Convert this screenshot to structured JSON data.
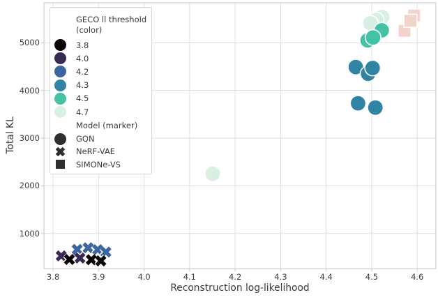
{
  "chart_data": {
    "type": "scatter",
    "title": "",
    "xlabel": "Reconstruction log-likelihood",
    "ylabel": "Total KL",
    "x_ticks": [
      3.8,
      3.9,
      4.0,
      4.1,
      4.2,
      4.3,
      4.4,
      4.5,
      4.6
    ],
    "y_ticks": [
      1000,
      2000,
      3000,
      4000,
      5000
    ],
    "x_range": [
      3.78,
      4.641
    ],
    "y_range": [
      265,
      5838
    ],
    "grid": true,
    "legend_position": "upper left",
    "threshold_colors": {
      "3.8": "#0b0405",
      "4.0": "#382a54",
      "4.2": "#3b64a1",
      "4.3": "#2f84a4",
      "4.5": "#43c3a5",
      "4.7": "#d7f0e2"
    },
    "simone_color": "#f2d4cb",
    "series": [
      {
        "name": "GQN",
        "marker": "circle",
        "points": [
          {
            "x": 4.523,
            "y": 5540,
            "threshold": "4.7"
          },
          {
            "x": 4.51,
            "y": 5480,
            "threshold": "4.7"
          },
          {
            "x": 4.497,
            "y": 5410,
            "threshold": "4.7"
          },
          {
            "x": 4.151,
            "y": 2250,
            "threshold": "4.7"
          },
          {
            "x": 4.522,
            "y": 5260,
            "threshold": "4.5"
          },
          {
            "x": 4.491,
            "y": 5050,
            "threshold": "4.5"
          },
          {
            "x": 4.503,
            "y": 5110,
            "threshold": "4.5"
          },
          {
            "x": 4.465,
            "y": 4490,
            "threshold": "4.3"
          },
          {
            "x": 4.492,
            "y": 4350,
            "threshold": "4.3"
          },
          {
            "x": 4.502,
            "y": 4470,
            "threshold": "4.3"
          },
          {
            "x": 4.47,
            "y": 3730,
            "threshold": "4.3"
          },
          {
            "x": 4.508,
            "y": 3640,
            "threshold": "4.3"
          }
        ]
      },
      {
        "name": "NeRF-VAE",
        "marker": "x",
        "points": [
          {
            "x": 3.853,
            "y": 665,
            "threshold": "4.2"
          },
          {
            "x": 3.877,
            "y": 700,
            "threshold": "4.2"
          },
          {
            "x": 3.898,
            "y": 660,
            "threshold": "4.2"
          },
          {
            "x": 3.916,
            "y": 610,
            "threshold": "4.2"
          },
          {
            "x": 3.818,
            "y": 530,
            "threshold": "4.0"
          },
          {
            "x": 3.859,
            "y": 485,
            "threshold": "4.0"
          },
          {
            "x": 3.836,
            "y": 455,
            "threshold": "3.8"
          },
          {
            "x": 3.884,
            "y": 450,
            "threshold": "3.8"
          },
          {
            "x": 3.905,
            "y": 425,
            "threshold": "3.8"
          }
        ]
      },
      {
        "name": "SIMONe-VS",
        "marker": "square",
        "points": [
          {
            "x": 4.593,
            "y": 5570,
            "color": "#f2d4cb"
          },
          {
            "x": 4.572,
            "y": 5250,
            "color": "#f2d4cb"
          },
          {
            "x": 4.585,
            "y": 5460,
            "color": "#f2d4cb"
          }
        ]
      }
    ],
    "legend": {
      "title_lines": [
        "GECO ll threshold",
        "(color)"
      ],
      "color_entries": [
        {
          "label": "3.8",
          "color": "#0b0405"
        },
        {
          "label": "4.0",
          "color": "#382a54"
        },
        {
          "label": "4.2",
          "color": "#3b64a1"
        },
        {
          "label": "4.3",
          "color": "#2f84a4"
        },
        {
          "label": "4.5",
          "color": "#43c3a5"
        },
        {
          "label": "4.7",
          "color": "#d7f0e2"
        }
      ],
      "marker_title": "Model (marker)",
      "marker_entries": [
        {
          "label": "GQN",
          "marker": "circle"
        },
        {
          "label": "NeRF-VAE",
          "marker": "x"
        },
        {
          "label": "SIMONe-VS",
          "marker": "square"
        }
      ],
      "marker_color": "#2f2f2f"
    }
  }
}
